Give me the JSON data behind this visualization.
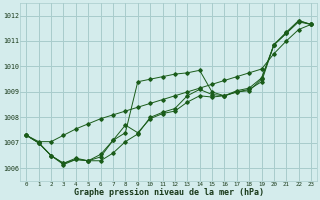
{
  "background_color": "#d4ecec",
  "grid_color": "#a8cccc",
  "line_color": "#1a5c1a",
  "xlabel": "Graphe pression niveau de la mer (hPa)",
  "ylim": [
    1005.5,
    1012.5
  ],
  "xlim": [
    -0.5,
    23.5
  ],
  "yticks": [
    1006,
    1007,
    1008,
    1009,
    1010,
    1011,
    1012
  ],
  "xticks": [
    0,
    1,
    2,
    3,
    4,
    5,
    6,
    7,
    8,
    9,
    10,
    11,
    12,
    13,
    14,
    15,
    16,
    17,
    18,
    19,
    20,
    21,
    22,
    23
  ],
  "series": [
    {
      "x": [
        0,
        1,
        2,
        3,
        4,
        5,
        6,
        7,
        8,
        9,
        10,
        11,
        12,
        13,
        14,
        15,
        16,
        17,
        18,
        19,
        20,
        21,
        22,
        23
      ],
      "y": [
        1007.3,
        1007.05,
        1007.05,
        1007.3,
        1007.55,
        1007.75,
        1007.95,
        1008.1,
        1008.25,
        1008.4,
        1008.55,
        1008.7,
        1008.85,
        1009.0,
        1009.15,
        1009.3,
        1009.45,
        1009.6,
        1009.75,
        1009.9,
        1010.5,
        1011.0,
        1011.45,
        1011.65
      ]
    },
    {
      "x": [
        0,
        1,
        2,
        3,
        4,
        5,
        6,
        7,
        8,
        9,
        10,
        11,
        12,
        13,
        14,
        15,
        16,
        17,
        18,
        19,
        20,
        21,
        22,
        23
      ],
      "y": [
        1007.3,
        1007.0,
        1006.5,
        1006.2,
        1006.4,
        1006.3,
        1006.3,
        1006.6,
        1007.05,
        1007.35,
        1008.0,
        1008.2,
        1008.35,
        1008.85,
        1009.1,
        1008.9,
        1008.85,
        1009.0,
        1009.1,
        1009.4,
        1010.85,
        1011.35,
        1011.8,
        1011.65
      ]
    },
    {
      "x": [
        0,
        1,
        2,
        3,
        4,
        5,
        6,
        7,
        8,
        9,
        10,
        11,
        12,
        13,
        14,
        15,
        16,
        17,
        18,
        19,
        20,
        21,
        22,
        23
      ],
      "y": [
        1007.3,
        1007.0,
        1006.5,
        1006.2,
        1006.35,
        1006.3,
        1006.45,
        1007.1,
        1007.7,
        1007.4,
        1007.95,
        1008.15,
        1008.25,
        1008.6,
        1008.85,
        1008.8,
        1008.85,
        1009.0,
        1009.05,
        1009.5,
        1010.85,
        1011.3,
        1011.75,
        1011.65
      ]
    },
    {
      "x": [
        0,
        1,
        2,
        3,
        4,
        5,
        6,
        7,
        8,
        9,
        10,
        11,
        12,
        13,
        14,
        15,
        16,
        17,
        18,
        19,
        20,
        21,
        22,
        23
      ],
      "y": [
        1007.3,
        1007.0,
        1006.5,
        1006.15,
        1006.35,
        1006.3,
        1006.55,
        1007.1,
        1007.4,
        1009.4,
        1009.5,
        1009.6,
        1009.7,
        1009.75,
        1009.85,
        1009.0,
        1008.85,
        1009.05,
        1009.15,
        1009.55,
        1010.85,
        1011.3,
        1011.8,
        1011.65
      ]
    }
  ]
}
